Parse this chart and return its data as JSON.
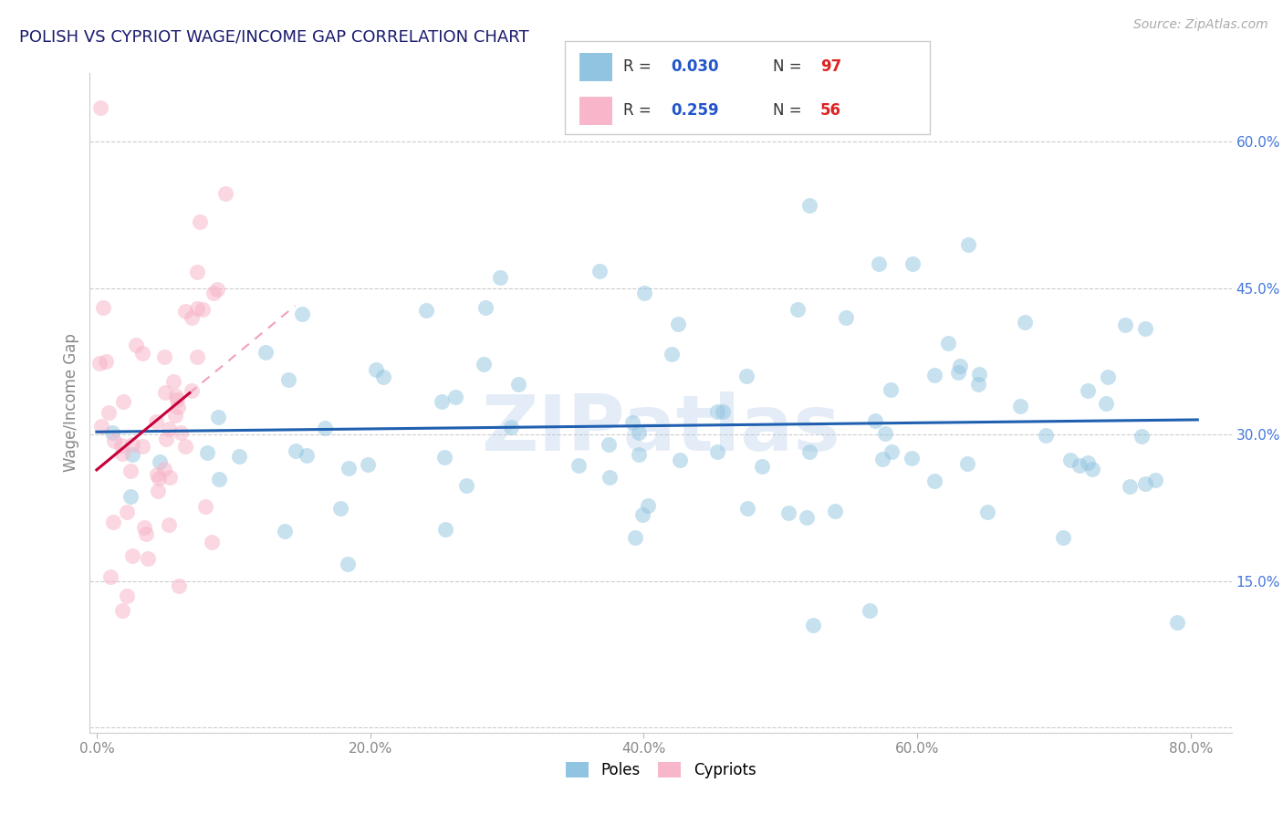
{
  "title": "POLISH VS CYPRIOT WAGE/INCOME GAP CORRELATION CHART",
  "source_text": "Source: ZipAtlas.com",
  "ylabel": "Wage/Income Gap",
  "xlim": [
    -0.005,
    0.83
  ],
  "ylim": [
    -0.005,
    0.67
  ],
  "yticks": [
    0.0,
    0.15,
    0.3,
    0.45,
    0.6
  ],
  "ytick_labels": [
    "",
    "15.0%",
    "30.0%",
    "45.0%",
    "60.0%"
  ],
  "xticks": [
    0.0,
    0.2,
    0.4,
    0.6,
    0.8
  ],
  "xtick_labels": [
    "0.0%",
    "20.0%",
    "40.0%",
    "60.0%",
    "80.0%"
  ],
  "blue_color": "#91c4e0",
  "pink_color": "#f7b6c9",
  "trendline_blue": "#2060b0",
  "trendline_pink_solid": "#c8003a",
  "trendline_pink_dash": "#f0a0ba",
  "watermark": "ZIPatlas",
  "legend_blue_R": "0.030",
  "legend_blue_N": "97",
  "legend_pink_R": "0.259",
  "legend_pink_N": "56",
  "title_color": "#1a1a6e",
  "ytick_color": "#4477dd",
  "xtick_color": "#888888",
  "source_color": "#aaaaaa"
}
